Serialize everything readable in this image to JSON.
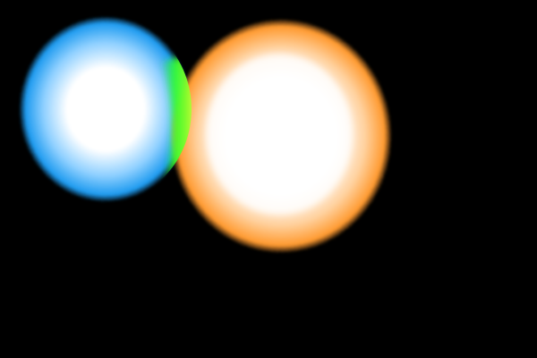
{
  "scene": {
    "background_color": "#000000",
    "blobs": [
      {
        "name": "blue-glow-blob",
        "core_color": "#ffffff",
        "mid_color": "#8fd0ff",
        "edge_color": "#1e9bf0"
      },
      {
        "name": "orange-glow-blob",
        "core_color": "#ffffff",
        "mid_color": "#ffd2a0",
        "edge_color": "#ff9a30"
      }
    ],
    "overlap": {
      "name": "green-overlap-band",
      "colors": [
        "#2aff2a",
        "#8dff2a",
        "#ffff40"
      ]
    }
  }
}
